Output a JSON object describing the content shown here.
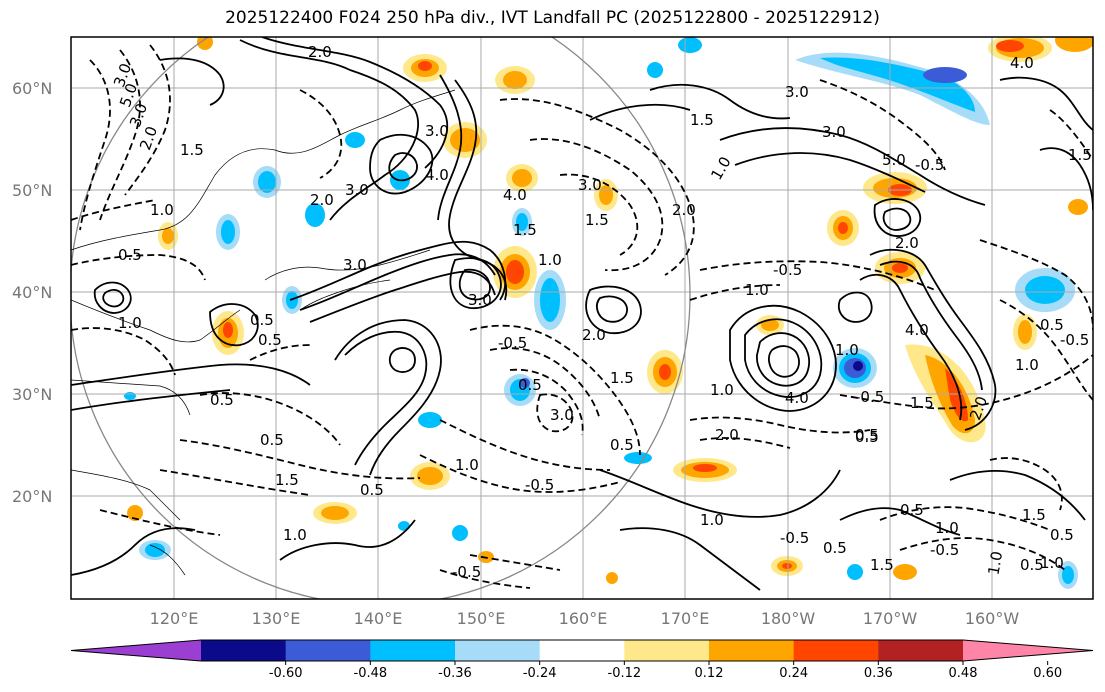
{
  "title": "2025122400 F024 250 hPa div., IVT Landfall PC (2025122800 - 2025122912)",
  "lat_labels": [
    "60°N",
    "50°N",
    "40°N",
    "30°N",
    "20°N"
  ],
  "lon_labels": [
    "120°E",
    "130°E",
    "140°E",
    "150°E",
    "160°E",
    "170°E",
    "180°W",
    "170°W",
    "160°W"
  ],
  "colorbar": {
    "colors": [
      "#9a3fd1",
      "#0a0a8a",
      "#3b5cd6",
      "#00bfff",
      "#a6dcf7",
      "#ffffff",
      "#ffe88a",
      "#ffa500",
      "#ff4500",
      "#b22222",
      "#ff85a8"
    ],
    "tick_labels": [
      "-0.60",
      "-0.48",
      "-0.36",
      "-0.24",
      "-0.12",
      "0.12",
      "0.24",
      "0.36",
      "0.48",
      "0.60"
    ]
  },
  "contour_labels": [
    "2.0",
    "3.0",
    "5.0",
    "3.0",
    "2.0",
    "1.5",
    "1.0",
    "0.5",
    "3.0",
    "4.0",
    "2.0",
    "3.0",
    "3.0",
    "4.0",
    "1.5",
    "1.0",
    "2.0",
    "3.0",
    "1.0",
    "0.5",
    "0.5",
    "0.5",
    "0.5",
    "3.0",
    "1.0",
    "-0.5",
    "0.5",
    "1.5",
    "2.0",
    "-0.5",
    "1.5",
    "0.5",
    "3.0",
    "0.5",
    "-0.5",
    "1.0",
    "1.5",
    "1.0",
    "-0.5",
    "1.0",
    "2.0",
    "4.0",
    "-0.5",
    "1.5",
    "1.0",
    "0.5",
    "4.0",
    "3.0",
    "2.0",
    "-0.5",
    "0.5",
    "1.5",
    "1.0",
    "0.5",
    "-0.5",
    "0.5",
    "0.5",
    "1.0",
    "1.0",
    "0.5",
    "2.0",
    "5.0",
    "3.0",
    "4.0",
    "1.5",
    "1.0",
    "-0.5",
    "1.0",
    "0.5",
    "-0.5",
    "1.5",
    "1.5",
    "1.0"
  ]
}
